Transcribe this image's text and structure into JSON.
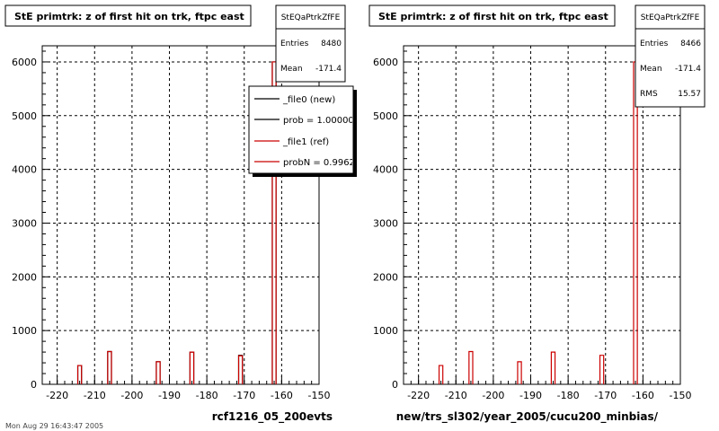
{
  "panels": [
    {
      "title": "StE primtrk: z of first hit on trk, ftpc east",
      "stats": {
        "name": "StEQaPtrkZfFE",
        "entries_label": "Entries",
        "entries_value": "8480",
        "mean_label": "Mean",
        "mean_value": "-171.4"
      },
      "xlabel": "rcf1216_05_200evts",
      "legend": {
        "entries": [
          {
            "label": "_file0 (new)",
            "color": "#000000"
          },
          {
            "label": "prob = 1.000000",
            "color": "#000000"
          },
          {
            "label": "_file1 (ref)",
            "color": "#cc0000"
          },
          {
            "label": "probN = 0.99622",
            "color": "#cc0000"
          }
        ]
      }
    },
    {
      "title": "StE primtrk: z of first hit on trk, ftpc east",
      "stats": {
        "name": "StEQaPtrkZfFE",
        "entries_label": "Entries",
        "entries_value": "8466",
        "mean_label": "Mean",
        "mean_value": "-171.4",
        "rms_label": "RMS",
        "rms_value": "15.57"
      },
      "xlabel": "new/trs_sl302/year_2005/cucu200_minbias/"
    }
  ],
  "footer": "Mon Aug 29 16:43:47 2005",
  "chart_data": [
    {
      "type": "bar",
      "title": "StE primtrk: z of first hit on trk, ftpc east",
      "xlabel": "rcf1216_05_200evts",
      "ylabel": "",
      "xlim": [
        -224,
        -150
      ],
      "ylim": [
        0,
        6300
      ],
      "xticks": [
        -220,
        -210,
        -200,
        -190,
        -180,
        -170,
        -160,
        -150
      ],
      "yticks": [
        0,
        1000,
        2000,
        3000,
        4000,
        5000,
        6000
      ],
      "grid": true,
      "legend_position": "top-right",
      "series": [
        {
          "name": "_file0 (new)",
          "color": "#000000",
          "bins": [
            [
              -214,
              350
            ],
            [
              -206,
              610
            ],
            [
              -193,
              420
            ],
            [
              -184,
              600
            ],
            [
              -171,
              540
            ],
            [
              -162,
              6000
            ]
          ]
        },
        {
          "name": "_file1 (ref)",
          "color": "#cc0000",
          "bins": [
            [
              -214,
              350
            ],
            [
              -206,
              610
            ],
            [
              -193,
              420
            ],
            [
              -184,
              600
            ],
            [
              -171,
              530
            ],
            [
              -162,
              6000
            ]
          ]
        }
      ]
    },
    {
      "type": "bar",
      "title": "StE primtrk: z of first hit on trk, ftpc east",
      "xlabel": "new/trs_sl302/year_2005/cucu200_minbias/",
      "ylabel": "",
      "xlim": [
        -224,
        -150
      ],
      "ylim": [
        0,
        6300
      ],
      "xticks": [
        -220,
        -210,
        -200,
        -190,
        -180,
        -170,
        -160,
        -150
      ],
      "yticks": [
        0,
        1000,
        2000,
        3000,
        4000,
        5000,
        6000
      ],
      "grid": true,
      "series": [
        {
          "name": "",
          "color": "#cc0000",
          "bins": [
            [
              -214,
              350
            ],
            [
              -206,
              610
            ],
            [
              -193,
              420
            ],
            [
              -184,
              600
            ],
            [
              -171,
              540
            ],
            [
              -162,
              6000
            ]
          ]
        }
      ]
    }
  ]
}
